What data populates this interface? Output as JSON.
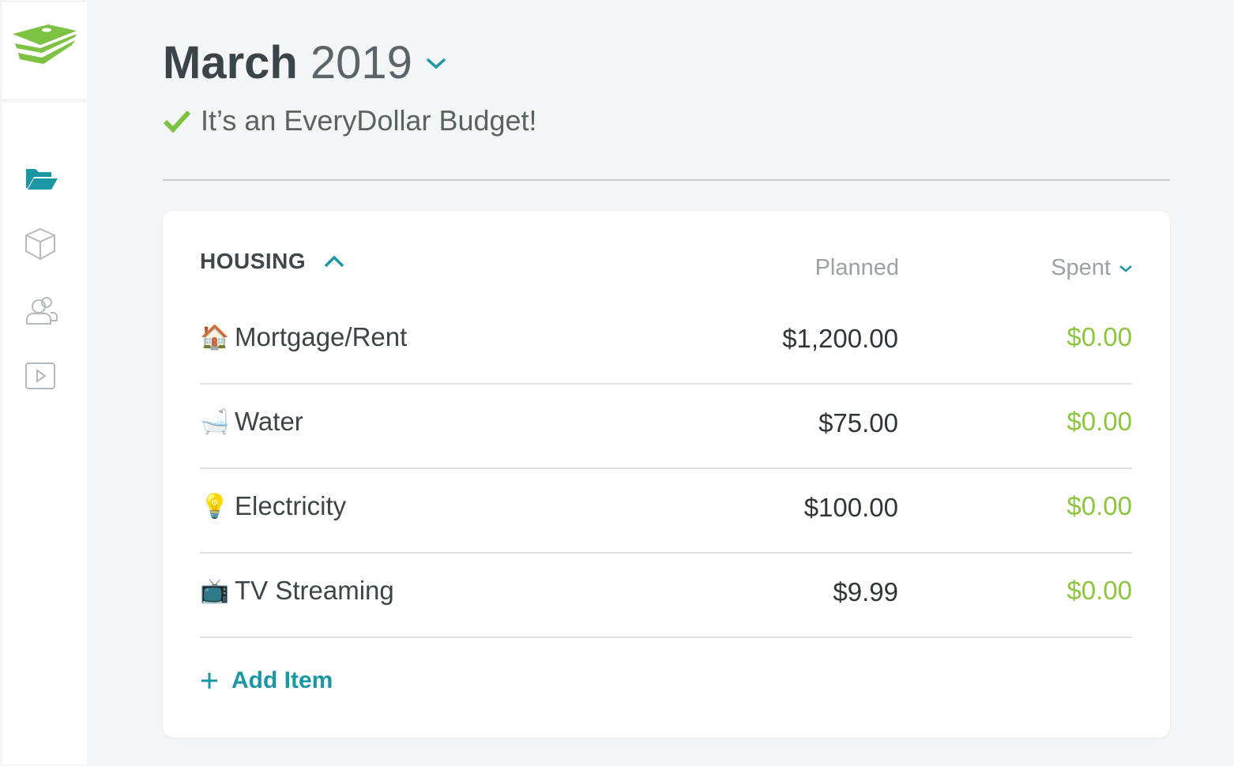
{
  "header": {
    "month": "March",
    "year": "2019",
    "status": "It’s an EveryDollar Budget!"
  },
  "colors": {
    "accent": "#1b97a4",
    "spent": "#8cc63f",
    "check": "#7dc242",
    "logo": "#7dc242"
  },
  "sidebar": {
    "items": [
      {
        "icon": "folder-open-icon",
        "active": true
      },
      {
        "icon": "cube-icon"
      },
      {
        "icon": "users-icon"
      },
      {
        "icon": "play-icon"
      }
    ]
  },
  "group": {
    "name": "HOUSING",
    "planned_label": "Planned",
    "spent_label": "Spent",
    "add_label": "Add Item",
    "items": [
      {
        "emoji": "🏠",
        "name": "Mortgage/Rent",
        "planned": "$1,200.00",
        "spent": "$0.00"
      },
      {
        "emoji": "🛁",
        "name": "Water",
        "planned": "$75.00",
        "spent": "$0.00"
      },
      {
        "emoji": "💡",
        "name": "Electricity",
        "planned": "$100.00",
        "spent": "$0.00"
      },
      {
        "emoji": "📺",
        "name": "TV Streaming",
        "planned": "$9.99",
        "spent": "$0.00"
      }
    ]
  }
}
